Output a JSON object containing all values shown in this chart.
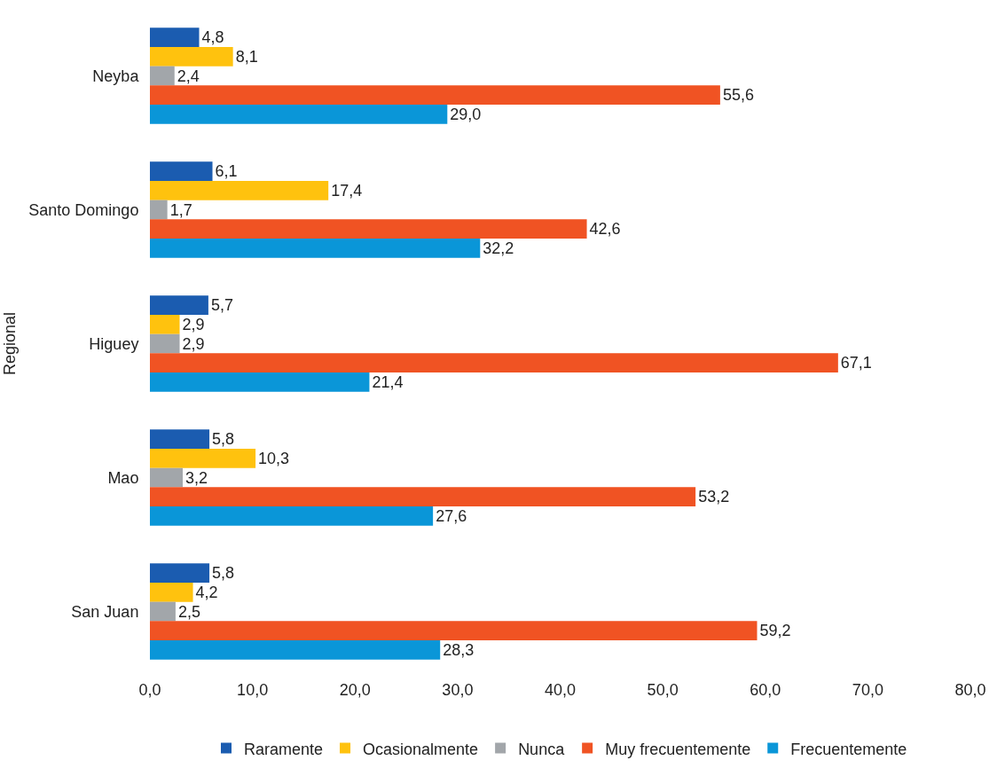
{
  "chart_data": {
    "type": "bar",
    "orientation": "horizontal",
    "ylabel": "Regional",
    "categories": [
      "Neyba",
      "Santo Domingo",
      "Higuey",
      "Mao",
      "San Juan"
    ],
    "series": [
      {
        "name": "Raramente",
        "color": "#1b5cb0",
        "values": [
          4.8,
          6.1,
          5.7,
          5.8,
          5.8
        ],
        "value_labels": [
          "4,8",
          "6,1",
          "5,7",
          "5,8",
          "5,8"
        ]
      },
      {
        "name": "Ocasionalmente",
        "color": "#ffc20e",
        "values": [
          8.1,
          17.4,
          2.9,
          10.3,
          4.2
        ],
        "value_labels": [
          "8,1",
          "17,4",
          "2,9",
          "10,3",
          "4,2"
        ]
      },
      {
        "name": "Nunca",
        "color": "#a2a6aa",
        "values": [
          2.4,
          1.7,
          2.9,
          3.2,
          2.5
        ],
        "value_labels": [
          "2,4",
          "1,7",
          "2,9",
          "3,2",
          "2,5"
        ]
      },
      {
        "name": "Muy frecuentemente",
        "color": "#f05323",
        "values": [
          55.6,
          42.6,
          67.1,
          53.2,
          59.2
        ],
        "value_labels": [
          "55,6",
          "42,6",
          "67,1",
          "53,2",
          "59,2"
        ]
      },
      {
        "name": "Frecuentemente",
        "color": "#0a96d8",
        "values": [
          29.0,
          32.2,
          21.4,
          27.6,
          28.3
        ],
        "value_labels": [
          "29,0",
          "32,2",
          "21,4",
          "27,6",
          "28,3"
        ]
      }
    ],
    "xlim": [
      0,
      80
    ],
    "xticks": [
      {
        "value": 0,
        "label": "0,0"
      },
      {
        "value": 10,
        "label": "10,0"
      },
      {
        "value": 20,
        "label": "20,0"
      },
      {
        "value": 30,
        "label": "30,0"
      },
      {
        "value": 40,
        "label": "40,0"
      },
      {
        "value": 50,
        "label": "50,0"
      },
      {
        "value": 60,
        "label": "60,0"
      },
      {
        "value": 70,
        "label": "70,0"
      },
      {
        "value": 80,
        "label": "80,0"
      }
    ],
    "grid": false,
    "legend": "bottom"
  }
}
